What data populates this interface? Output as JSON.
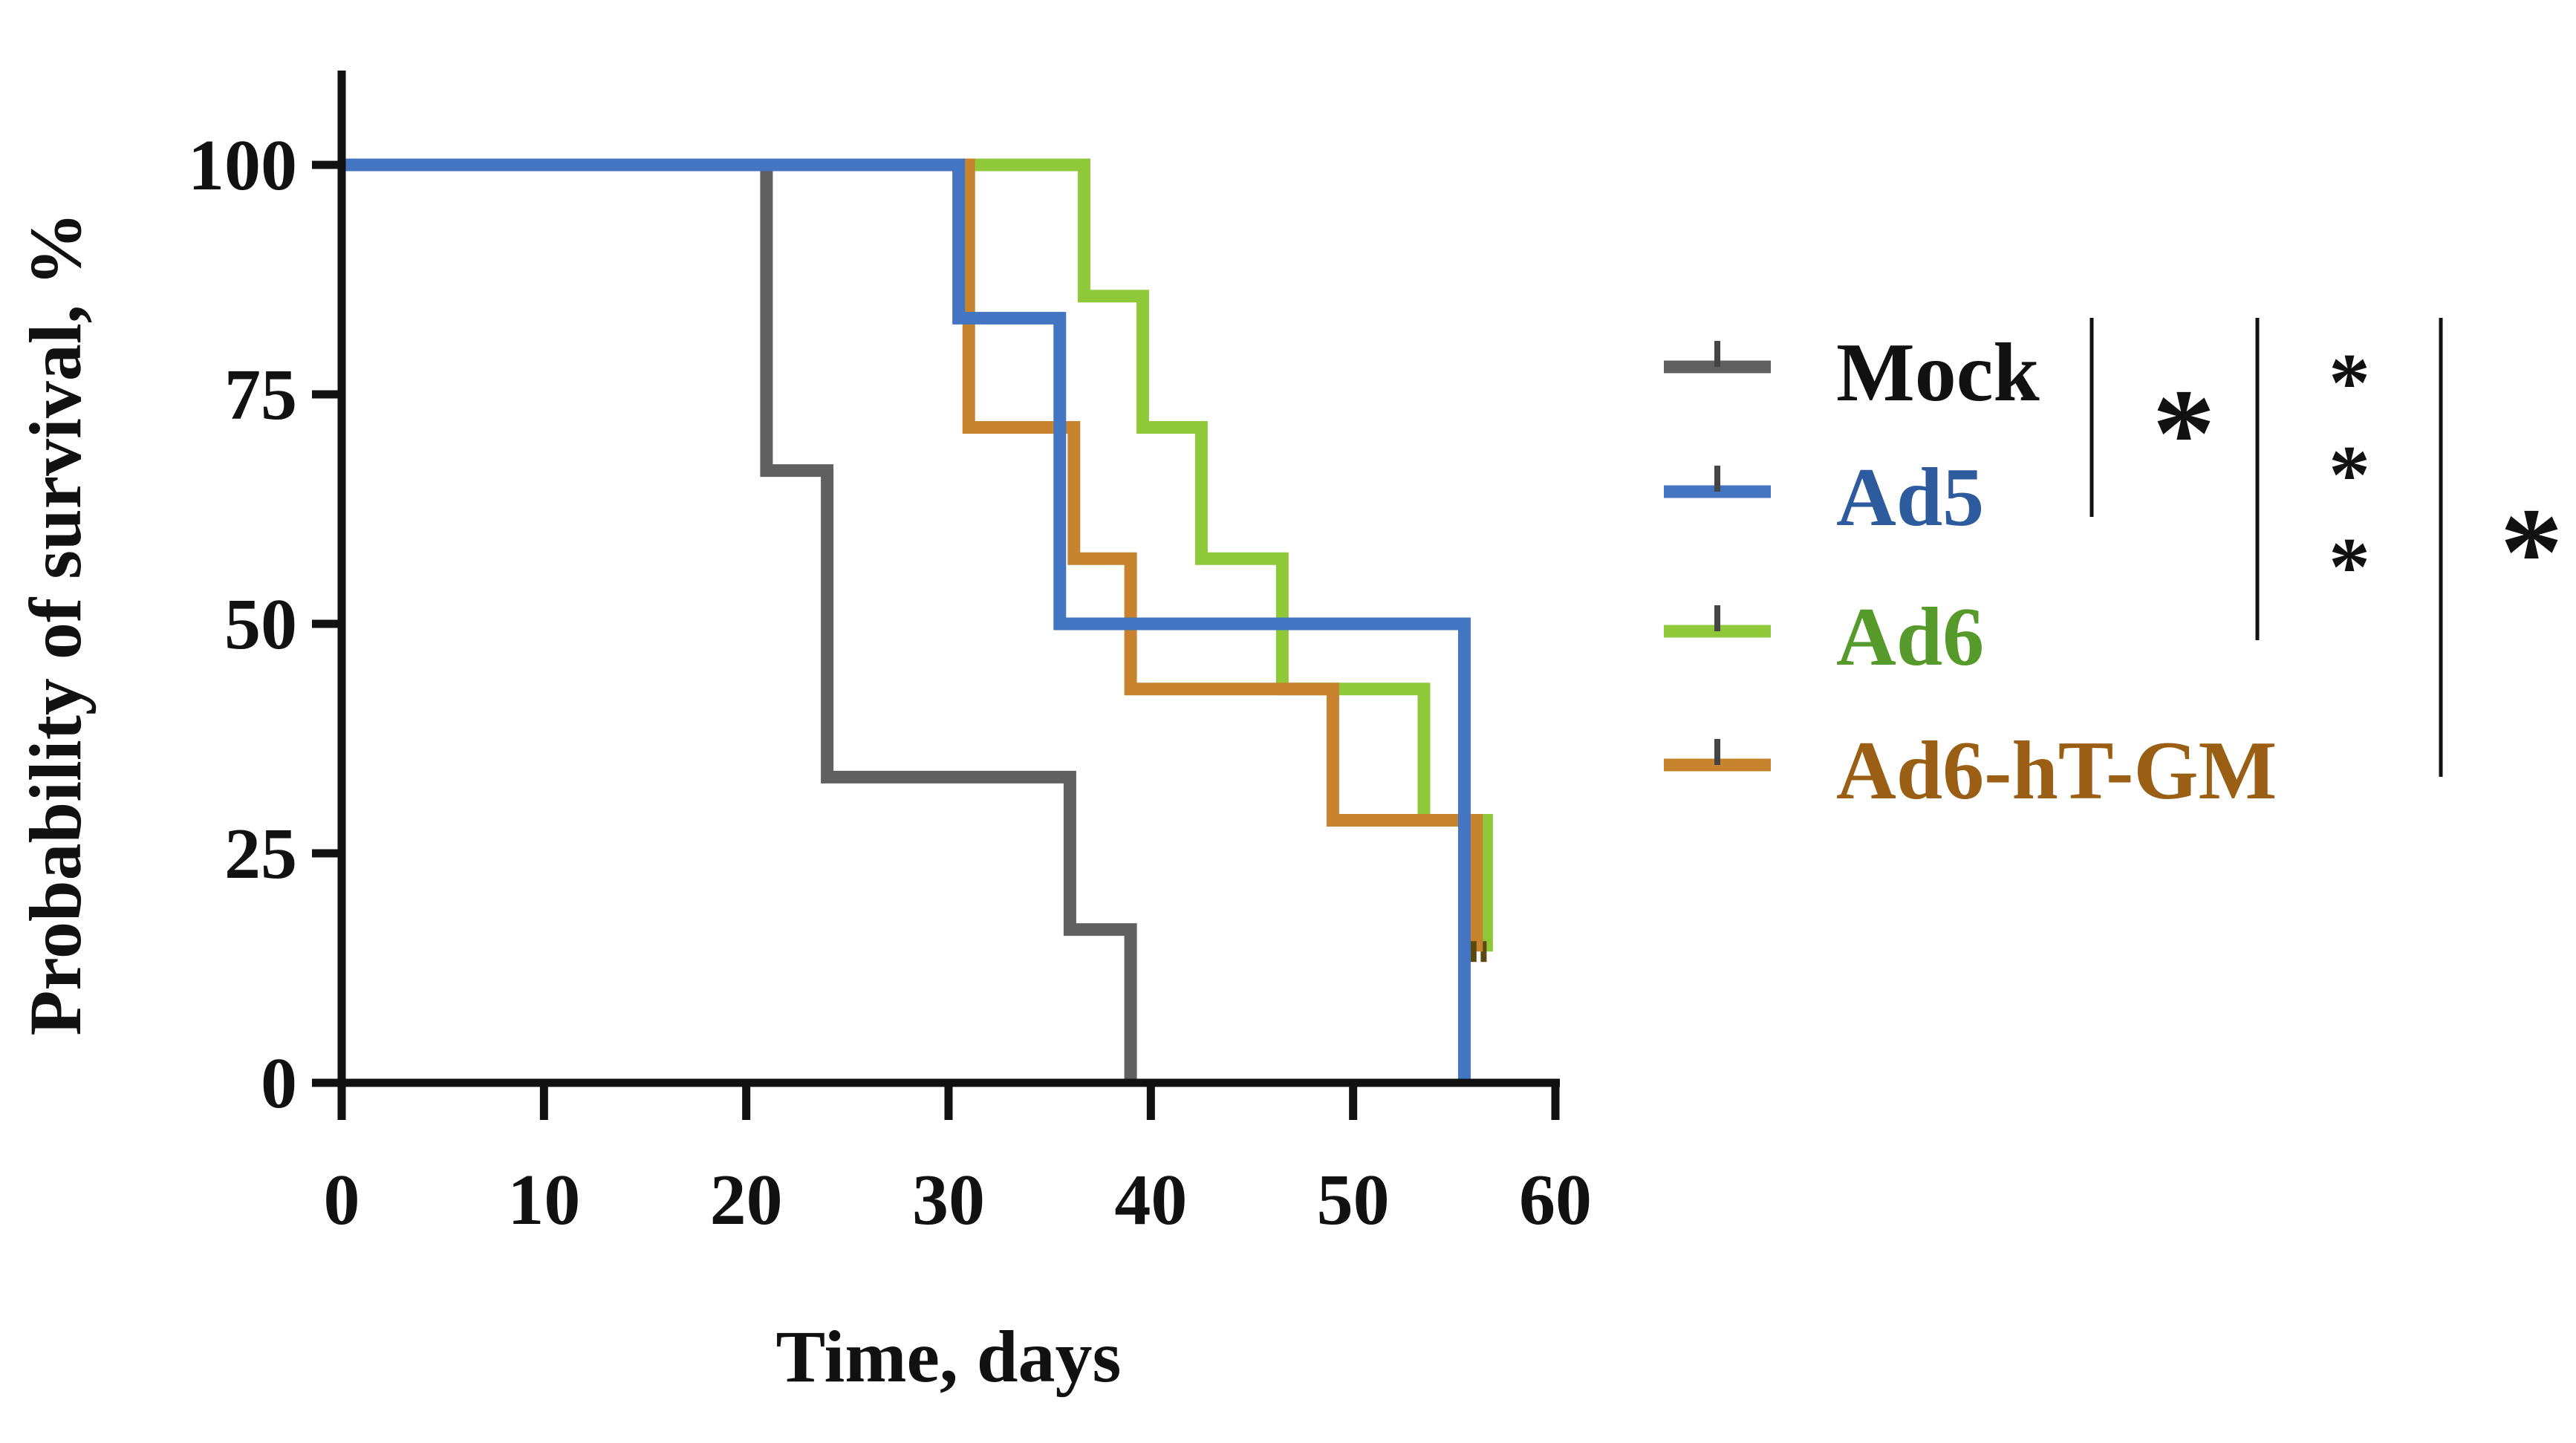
{
  "chart_data": {
    "type": "line",
    "subtype": "kaplan-meier step",
    "xlabel": "Time, days",
    "ylabel": "Probability of survival, %",
    "xlim": [
      0,
      60
    ],
    "ylim": [
      0,
      100
    ],
    "xticks": [
      0,
      10,
      20,
      30,
      40,
      50,
      60
    ],
    "yticks": [
      0,
      25,
      50,
      75,
      100
    ],
    "grid": false,
    "legend_position": "right",
    "series": [
      {
        "name": "Mock",
        "color": "#606060",
        "label_color": "#111111",
        "steps": [
          [
            0,
            100
          ],
          [
            21,
            66.7
          ],
          [
            24,
            33.3
          ],
          [
            36,
            16.7
          ],
          [
            39,
            0
          ]
        ],
        "end": 39,
        "censored": []
      },
      {
        "name": "Ad5",
        "color": "#4375c2",
        "label_color": "#2e5a9e",
        "steps": [
          [
            0,
            100
          ],
          [
            30.5,
            83.3
          ],
          [
            35.5,
            50
          ],
          [
            55.5,
            0
          ]
        ],
        "end": 55.5,
        "censored": []
      },
      {
        "name": "Ad6",
        "color": "#8fc93a",
        "label_color": "#559a2a",
        "steps": [
          [
            0,
            100
          ],
          [
            36.7,
            85.7
          ],
          [
            39.6,
            71.4
          ],
          [
            42.5,
            57.1
          ],
          [
            46.5,
            42.9
          ],
          [
            53.5,
            28.6
          ],
          [
            56.6,
            14.3
          ]
        ],
        "end": 56.6,
        "censored": [
          [
            56.6,
            14.3
          ]
        ]
      },
      {
        "name": "Ad6-hT-GM",
        "color": "#c8832e",
        "label_color": "#9a5e14",
        "steps": [
          [
            0,
            100
          ],
          [
            31,
            71.4
          ],
          [
            36.2,
            57.1
          ],
          [
            39,
            42.9
          ],
          [
            49,
            28.6
          ],
          [
            56.1,
            14.3
          ]
        ],
        "end": 56.1,
        "censored": [
          [
            56.1,
            14.3
          ]
        ]
      }
    ],
    "significance": [
      {
        "groups": [
          "Mock",
          "Ad5"
        ],
        "label": "*"
      },
      {
        "groups": [
          "Mock",
          "Ad6"
        ],
        "label": "***"
      },
      {
        "groups": [
          "Mock",
          "Ad6-hT-GM"
        ],
        "label": "*"
      }
    ]
  }
}
